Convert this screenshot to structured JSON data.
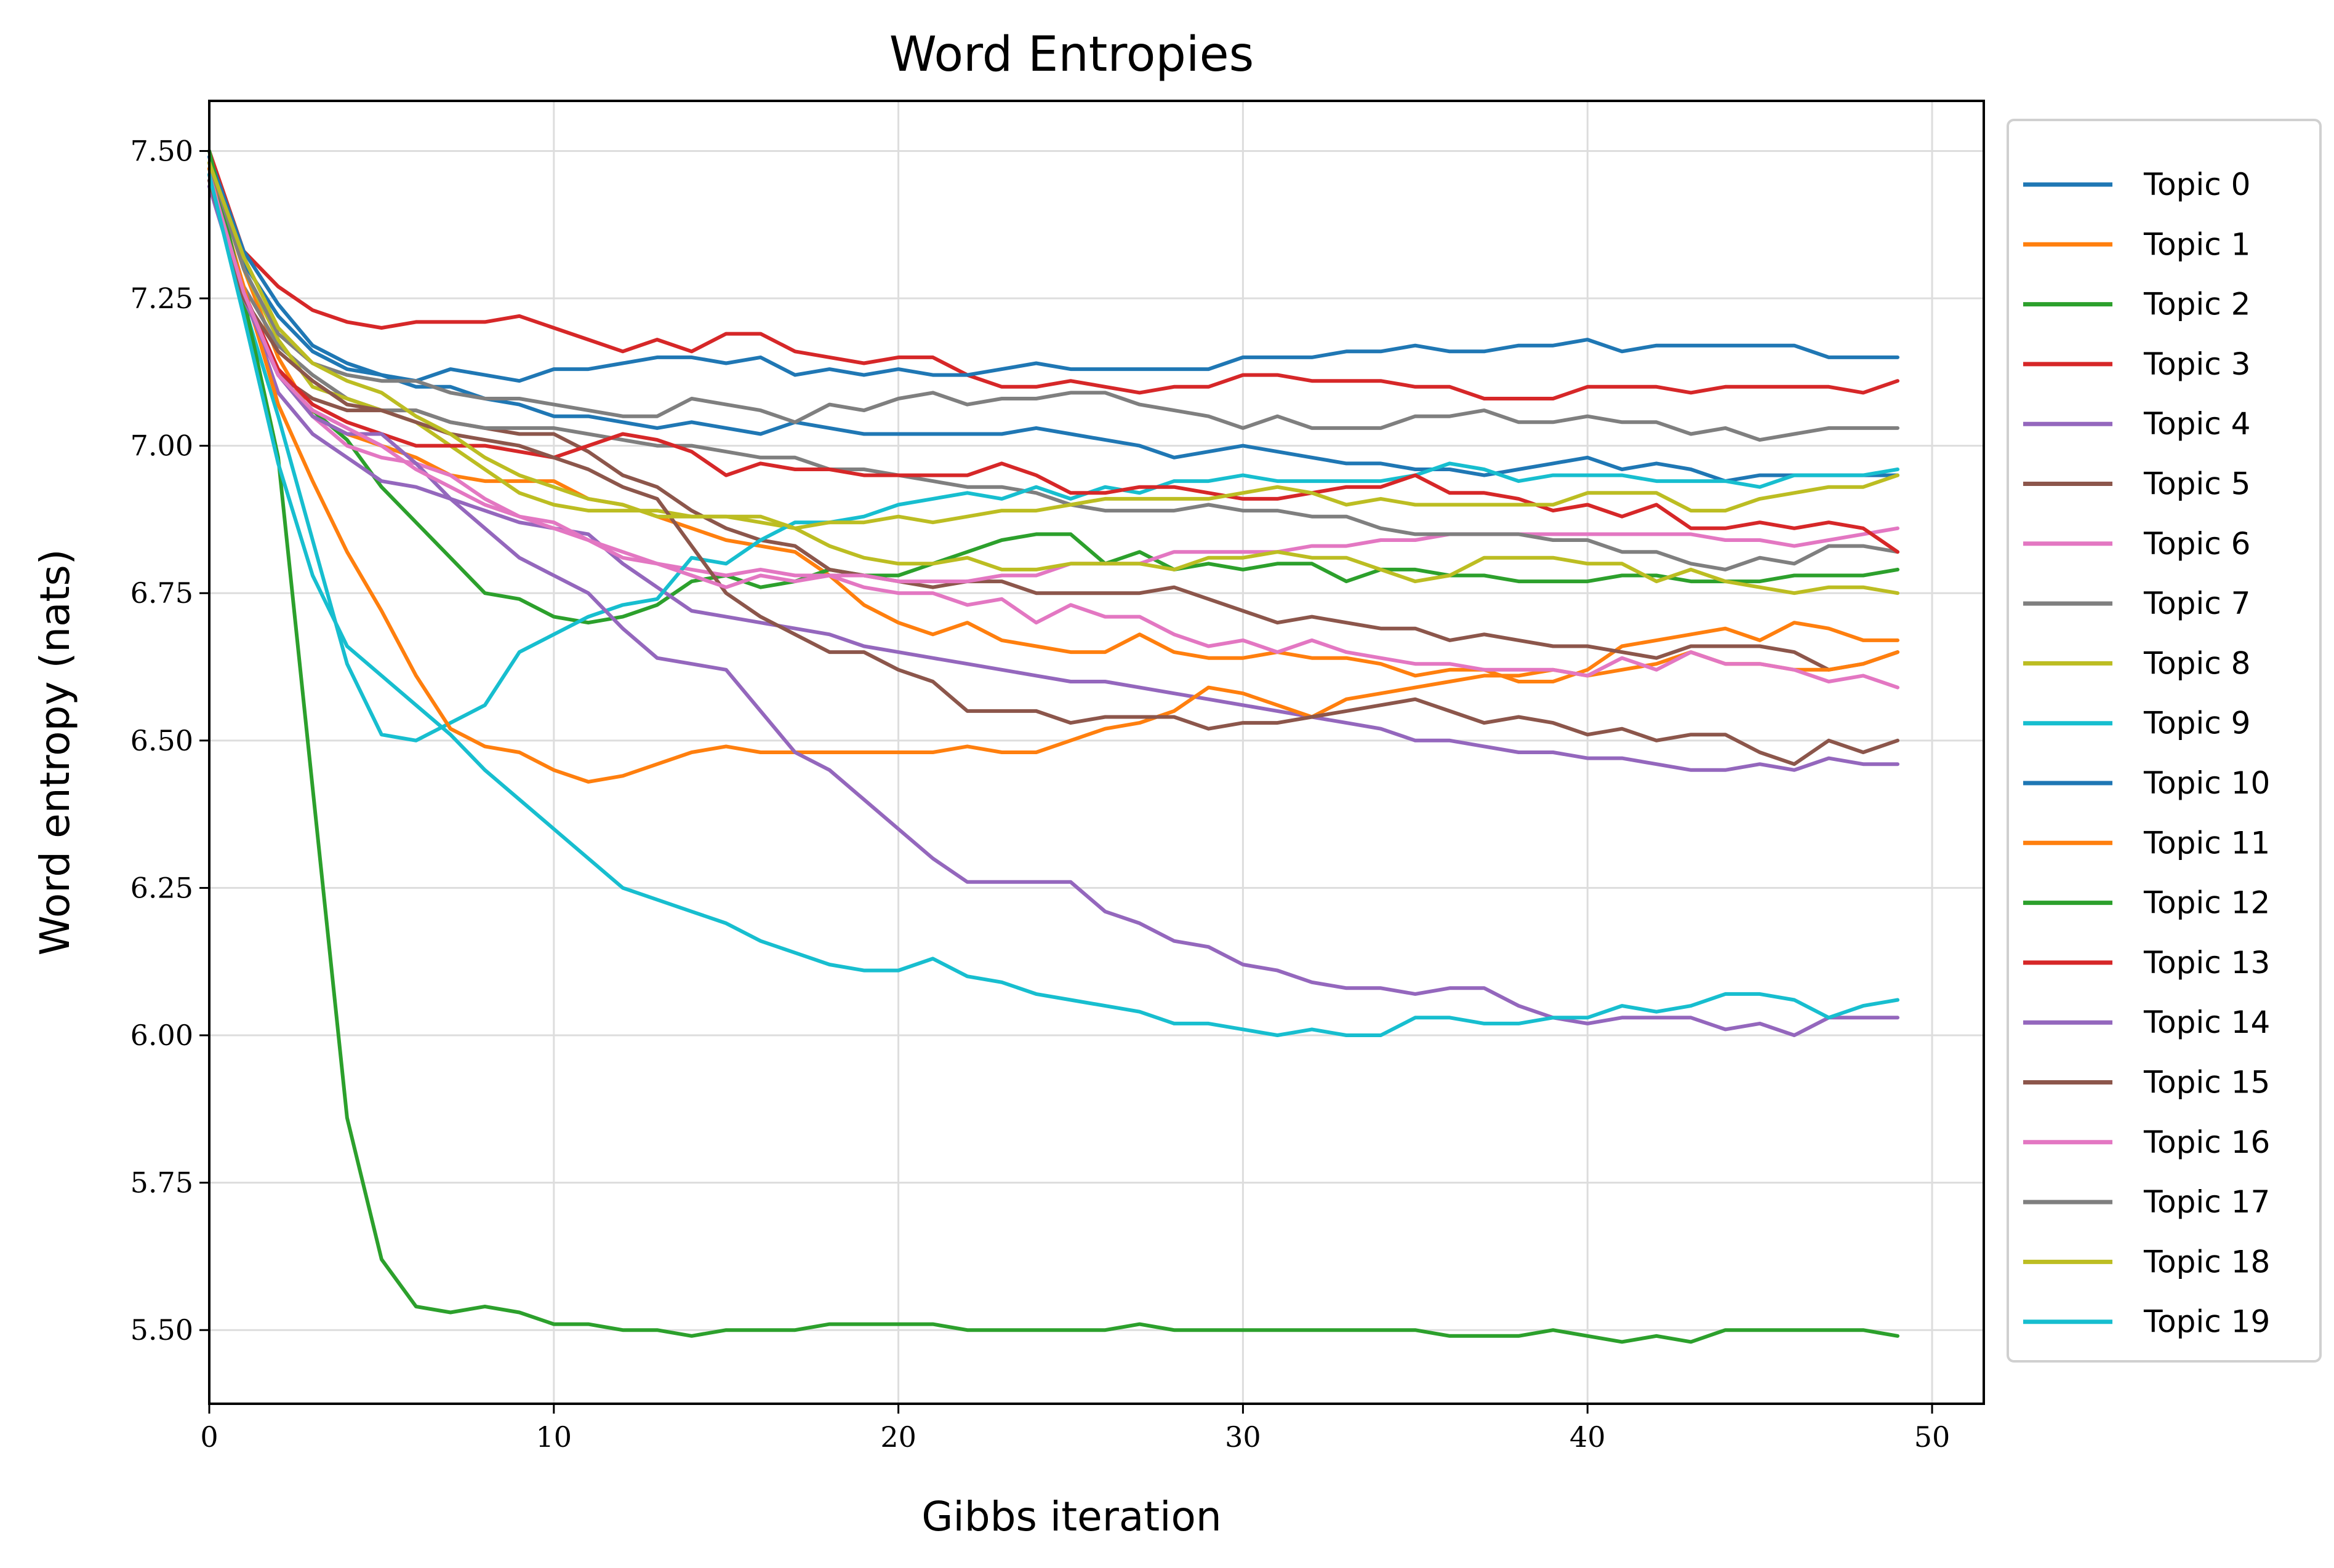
{
  "chart_data": {
    "type": "line",
    "title": "Word Entropies",
    "xlabel": "Gibbs iteration",
    "ylabel": "Word entropy (nats)",
    "xlim": [
      0,
      51.5
    ],
    "ylim": [
      5.375,
      7.585
    ],
    "xticks": [
      0,
      10,
      20,
      30,
      40,
      50
    ],
    "yticks": [
      5.5,
      5.75,
      6.0,
      6.25,
      6.5,
      6.75,
      7.0,
      7.25,
      7.5
    ],
    "xtick_labels": [
      "0",
      "10",
      "20",
      "30",
      "40",
      "50"
    ],
    "ytick_labels": [
      "5.50",
      "5.75",
      "6.00",
      "6.25",
      "6.50",
      "6.75",
      "7.00",
      "7.25",
      "7.50"
    ],
    "grid": true,
    "legend_position": "outside-right",
    "x": [
      0,
      1,
      2,
      3,
      4,
      5,
      6,
      7,
      8,
      9,
      10,
      11,
      12,
      13,
      14,
      15,
      16,
      17,
      18,
      19,
      20,
      21,
      22,
      23,
      24,
      25,
      26,
      27,
      28,
      29,
      30,
      31,
      32,
      33,
      34,
      35,
      36,
      37,
      38,
      39,
      40,
      41,
      42,
      43,
      44,
      45,
      46,
      47,
      48,
      49
    ],
    "series": [
      {
        "name": "Topic 0",
        "color": "#1f77b4",
        "values": [
          7.49,
          7.31,
          7.22,
          7.16,
          7.13,
          7.12,
          7.1,
          7.1,
          7.08,
          7.07,
          7.05,
          7.05,
          7.04,
          7.03,
          7.04,
          7.03,
          7.02,
          7.04,
          7.03,
          7.02,
          7.02,
          7.02,
          7.02,
          7.02,
          7.03,
          7.02,
          7.01,
          7.0,
          6.98,
          6.99,
          7.0,
          6.99,
          6.98,
          6.97,
          6.97,
          6.96,
          6.96,
          6.95,
          6.96,
          6.97,
          6.98,
          6.96,
          6.97,
          6.96,
          6.94,
          6.95,
          6.95,
          6.95,
          6.95,
          6.95
        ]
      },
      {
        "name": "Topic 1",
        "color": "#ff7f0e",
        "values": [
          7.48,
          7.3,
          7.15,
          7.05,
          7.02,
          7.0,
          6.98,
          6.95,
          6.94,
          6.94,
          6.94,
          6.91,
          6.9,
          6.88,
          6.86,
          6.84,
          6.83,
          6.82,
          6.78,
          6.73,
          6.7,
          6.68,
          6.7,
          6.67,
          6.66,
          6.65,
          6.65,
          6.68,
          6.65,
          6.64,
          6.64,
          6.65,
          6.64,
          6.64,
          6.63,
          6.61,
          6.62,
          6.62,
          6.6,
          6.6,
          6.62,
          6.66,
          6.67,
          6.68,
          6.69,
          6.67,
          6.7,
          6.69,
          6.67,
          6.67
        ]
      },
      {
        "name": "Topic 2",
        "color": "#2ca02c",
        "values": [
          7.47,
          7.26,
          7.12,
          7.06,
          7.01,
          6.93,
          6.87,
          6.81,
          6.75,
          6.74,
          6.71,
          6.7,
          6.71,
          6.73,
          6.77,
          6.78,
          6.76,
          6.77,
          6.79,
          6.78,
          6.78,
          6.8,
          6.82,
          6.84,
          6.85,
          6.85,
          6.8,
          6.82,
          6.79,
          6.8,
          6.79,
          6.8,
          6.8,
          6.77,
          6.79,
          6.79,
          6.78,
          6.78,
          6.77,
          6.77,
          6.77,
          6.78,
          6.78,
          6.77,
          6.77,
          6.77,
          6.78,
          6.78,
          6.78,
          6.79
        ]
      },
      {
        "name": "Topic 3",
        "color": "#d62728",
        "values": [
          7.5,
          7.33,
          7.27,
          7.23,
          7.21,
          7.2,
          7.21,
          7.21,
          7.21,
          7.22,
          7.2,
          7.18,
          7.16,
          7.18,
          7.16,
          7.19,
          7.19,
          7.16,
          7.15,
          7.14,
          7.15,
          7.15,
          7.12,
          7.1,
          7.1,
          7.11,
          7.1,
          7.09,
          7.1,
          7.1,
          7.12,
          7.12,
          7.11,
          7.11,
          7.11,
          7.1,
          7.1,
          7.08,
          7.08,
          7.08,
          7.1,
          7.1,
          7.1,
          7.09,
          7.1,
          7.1,
          7.1,
          7.1,
          7.09,
          7.11
        ]
      },
      {
        "name": "Topic 4",
        "color": "#9467bd",
        "values": [
          7.45,
          7.26,
          7.09,
          7.02,
          6.98,
          6.94,
          6.93,
          6.91,
          6.89,
          6.87,
          6.86,
          6.85,
          6.8,
          6.76,
          6.72,
          6.71,
          6.7,
          6.69,
          6.68,
          6.66,
          6.65,
          6.64,
          6.63,
          6.62,
          6.61,
          6.6,
          6.6,
          6.59,
          6.58,
          6.57,
          6.56,
          6.55,
          6.54,
          6.53,
          6.52,
          6.5,
          6.5,
          6.49,
          6.48,
          6.48,
          6.47,
          6.47,
          6.46,
          6.45,
          6.45,
          6.46,
          6.45,
          6.47,
          6.46,
          6.46
        ]
      },
      {
        "name": "Topic 5",
        "color": "#8c564b",
        "values": [
          7.46,
          7.25,
          7.12,
          7.08,
          7.06,
          7.06,
          7.06,
          7.04,
          7.03,
          7.02,
          7.02,
          6.99,
          6.95,
          6.93,
          6.89,
          6.86,
          6.84,
          6.83,
          6.79,
          6.78,
          6.77,
          6.76,
          6.77,
          6.77,
          6.75,
          6.75,
          6.75,
          6.75,
          6.76,
          6.74,
          6.72,
          6.7,
          6.71,
          6.7,
          6.69,
          6.69,
          6.67,
          6.68,
          6.67,
          6.66,
          6.66,
          6.65,
          6.64,
          6.66,
          6.66,
          6.66,
          6.65,
          6.62,
          6.63,
          6.65
        ]
      },
      {
        "name": "Topic 6",
        "color": "#e377c2",
        "values": [
          7.46,
          7.26,
          7.12,
          7.05,
          7.0,
          6.98,
          6.97,
          6.95,
          6.91,
          6.88,
          6.86,
          6.84,
          6.81,
          6.8,
          6.79,
          6.78,
          6.79,
          6.78,
          6.78,
          6.78,
          6.77,
          6.77,
          6.77,
          6.78,
          6.78,
          6.8,
          6.8,
          6.8,
          6.82,
          6.82,
          6.82,
          6.82,
          6.83,
          6.83,
          6.84,
          6.84,
          6.85,
          6.85,
          6.85,
          6.85,
          6.85,
          6.85,
          6.85,
          6.85,
          6.84,
          6.84,
          6.83,
          6.84,
          6.85,
          6.86
        ]
      },
      {
        "name": "Topic 7",
        "color": "#7f7f7f",
        "values": [
          7.47,
          7.27,
          7.17,
          7.12,
          7.08,
          7.06,
          7.06,
          7.04,
          7.03,
          7.03,
          7.03,
          7.02,
          7.01,
          7.0,
          7.0,
          6.99,
          6.98,
          6.98,
          6.96,
          6.96,
          6.95,
          6.94,
          6.93,
          6.93,
          6.92,
          6.9,
          6.89,
          6.89,
          6.89,
          6.9,
          6.89,
          6.89,
          6.88,
          6.88,
          6.86,
          6.85,
          6.85,
          6.85,
          6.85,
          6.84,
          6.84,
          6.82,
          6.82,
          6.8,
          6.79,
          6.81,
          6.8,
          6.83,
          6.83,
          6.82
        ]
      },
      {
        "name": "Topic 8",
        "color": "#bcbd22",
        "values": [
          7.48,
          7.3,
          7.18,
          7.1,
          7.08,
          7.06,
          7.04,
          7.0,
          6.96,
          6.92,
          6.9,
          6.89,
          6.89,
          6.89,
          6.88,
          6.88,
          6.87,
          6.86,
          6.83,
          6.81,
          6.8,
          6.8,
          6.81,
          6.79,
          6.79,
          6.8,
          6.8,
          6.8,
          6.79,
          6.81,
          6.81,
          6.82,
          6.81,
          6.81,
          6.79,
          6.77,
          6.78,
          6.81,
          6.81,
          6.81,
          6.8,
          6.8,
          6.77,
          6.79,
          6.77,
          6.76,
          6.75,
          6.76,
          6.76,
          6.75
        ]
      },
      {
        "name": "Topic 9",
        "color": "#17becf",
        "values": [
          7.46,
          7.24,
          7.05,
          6.84,
          6.63,
          6.51,
          6.5,
          6.53,
          6.56,
          6.65,
          6.68,
          6.71,
          6.73,
          6.74,
          6.81,
          6.8,
          6.84,
          6.87,
          6.87,
          6.88,
          6.9,
          6.91,
          6.92,
          6.91,
          6.93,
          6.91,
          6.93,
          6.92,
          6.94,
          6.94,
          6.95,
          6.94,
          6.94,
          6.94,
          6.94,
          6.95,
          6.97,
          6.96,
          6.94,
          6.95,
          6.95,
          6.95,
          6.94,
          6.94,
          6.94,
          6.93,
          6.95,
          6.95,
          6.95,
          6.96
        ]
      },
      {
        "name": "Topic 10",
        "color": "#1f77b4",
        "values": [
          7.49,
          7.33,
          7.24,
          7.17,
          7.14,
          7.12,
          7.11,
          7.13,
          7.12,
          7.11,
          7.13,
          7.13,
          7.14,
          7.15,
          7.15,
          7.14,
          7.15,
          7.12,
          7.13,
          7.12,
          7.13,
          7.12,
          7.12,
          7.13,
          7.14,
          7.13,
          7.13,
          7.13,
          7.13,
          7.13,
          7.15,
          7.15,
          7.15,
          7.16,
          7.16,
          7.17,
          7.16,
          7.16,
          7.17,
          7.17,
          7.18,
          7.16,
          7.17,
          7.17,
          7.17,
          7.17,
          7.17,
          7.15,
          7.15,
          7.15
        ]
      },
      {
        "name": "Topic 11",
        "color": "#ff7f0e",
        "values": [
          7.47,
          7.27,
          7.07,
          6.94,
          6.82,
          6.72,
          6.61,
          6.52,
          6.49,
          6.48,
          6.45,
          6.43,
          6.44,
          6.46,
          6.48,
          6.49,
          6.48,
          6.48,
          6.48,
          6.48,
          6.48,
          6.48,
          6.49,
          6.48,
          6.48,
          6.5,
          6.52,
          6.53,
          6.55,
          6.59,
          6.58,
          6.56,
          6.54,
          6.57,
          6.58,
          6.59,
          6.6,
          6.61,
          6.61,
          6.62,
          6.61,
          6.62,
          6.63,
          6.65,
          6.63,
          6.63,
          6.62,
          6.62,
          6.63,
          6.65
        ]
      },
      {
        "name": "Topic 12",
        "color": "#2ca02c",
        "values": [
          7.5,
          7.25,
          6.98,
          6.42,
          5.86,
          5.62,
          5.54,
          5.53,
          5.54,
          5.53,
          5.51,
          5.51,
          5.5,
          5.5,
          5.49,
          5.5,
          5.5,
          5.5,
          5.51,
          5.51,
          5.51,
          5.51,
          5.5,
          5.5,
          5.5,
          5.5,
          5.5,
          5.51,
          5.5,
          5.5,
          5.5,
          5.5,
          5.5,
          5.5,
          5.5,
          5.5,
          5.49,
          5.49,
          5.49,
          5.5,
          5.49,
          5.48,
          5.49,
          5.48,
          5.5,
          5.5,
          5.5,
          5.5,
          5.5,
          5.49
        ]
      },
      {
        "name": "Topic 13",
        "color": "#d62728",
        "values": [
          7.46,
          7.26,
          7.13,
          7.07,
          7.04,
          7.02,
          7.0,
          7.0,
          7.0,
          6.99,
          6.98,
          7.0,
          7.02,
          7.01,
          6.99,
          6.95,
          6.97,
          6.96,
          6.96,
          6.95,
          6.95,
          6.95,
          6.95,
          6.97,
          6.95,
          6.92,
          6.92,
          6.93,
          6.93,
          6.92,
          6.91,
          6.91,
          6.92,
          6.93,
          6.93,
          6.95,
          6.92,
          6.92,
          6.91,
          6.89,
          6.9,
          6.88,
          6.9,
          6.86,
          6.86,
          6.87,
          6.86,
          6.87,
          6.86,
          6.82
        ]
      },
      {
        "name": "Topic 14",
        "color": "#9467bd",
        "values": [
          7.44,
          7.25,
          7.12,
          7.05,
          7.02,
          7.02,
          6.97,
          6.91,
          6.86,
          6.81,
          6.78,
          6.75,
          6.69,
          6.64,
          6.63,
          6.62,
          6.55,
          6.48,
          6.45,
          6.4,
          6.35,
          6.3,
          6.26,
          6.26,
          6.26,
          6.26,
          6.21,
          6.19,
          6.16,
          6.15,
          6.12,
          6.11,
          6.09,
          6.08,
          6.08,
          6.07,
          6.08,
          6.08,
          6.05,
          6.03,
          6.02,
          6.03,
          6.03,
          6.03,
          6.01,
          6.02,
          6.0,
          6.03,
          6.03,
          6.03
        ]
      },
      {
        "name": "Topic 15",
        "color": "#8c564b",
        "values": [
          7.45,
          7.25,
          7.16,
          7.11,
          7.07,
          7.06,
          7.04,
          7.02,
          7.01,
          7.0,
          6.98,
          6.96,
          6.93,
          6.91,
          6.83,
          6.75,
          6.71,
          6.68,
          6.65,
          6.65,
          6.62,
          6.6,
          6.55,
          6.55,
          6.55,
          6.53,
          6.54,
          6.54,
          6.54,
          6.52,
          6.53,
          6.53,
          6.54,
          6.55,
          6.56,
          6.57,
          6.55,
          6.53,
          6.54,
          6.53,
          6.51,
          6.52,
          6.5,
          6.51,
          6.51,
          6.48,
          6.46,
          6.5,
          6.48,
          6.5
        ]
      },
      {
        "name": "Topic 16",
        "color": "#e377c2",
        "values": [
          7.46,
          7.26,
          7.12,
          7.06,
          7.03,
          7.0,
          6.96,
          6.93,
          6.9,
          6.88,
          6.87,
          6.84,
          6.82,
          6.8,
          6.78,
          6.76,
          6.78,
          6.77,
          6.78,
          6.76,
          6.75,
          6.75,
          6.73,
          6.74,
          6.7,
          6.73,
          6.71,
          6.71,
          6.68,
          6.66,
          6.67,
          6.65,
          6.67,
          6.65,
          6.64,
          6.63,
          6.63,
          6.62,
          6.62,
          6.62,
          6.61,
          6.64,
          6.62,
          6.65,
          6.63,
          6.63,
          6.62,
          6.6,
          6.61,
          6.59
        ]
      },
      {
        "name": "Topic 17",
        "color": "#7f7f7f",
        "values": [
          7.48,
          7.3,
          7.19,
          7.14,
          7.12,
          7.11,
          7.11,
          7.09,
          7.08,
          7.08,
          7.07,
          7.06,
          7.05,
          7.05,
          7.08,
          7.07,
          7.06,
          7.04,
          7.07,
          7.06,
          7.08,
          7.09,
          7.07,
          7.08,
          7.08,
          7.09,
          7.09,
          7.07,
          7.06,
          7.05,
          7.03,
          7.05,
          7.03,
          7.03,
          7.03,
          7.05,
          7.05,
          7.06,
          7.04,
          7.04,
          7.05,
          7.04,
          7.04,
          7.02,
          7.03,
          7.01,
          7.02,
          7.03,
          7.03,
          7.03
        ]
      },
      {
        "name": "Topic 18",
        "color": "#bcbd22",
        "values": [
          7.48,
          7.32,
          7.2,
          7.14,
          7.11,
          7.09,
          7.05,
          7.02,
          6.98,
          6.95,
          6.93,
          6.91,
          6.9,
          6.88,
          6.88,
          6.88,
          6.88,
          6.86,
          6.87,
          6.87,
          6.88,
          6.87,
          6.88,
          6.89,
          6.89,
          6.9,
          6.91,
          6.91,
          6.91,
          6.91,
          6.92,
          6.93,
          6.92,
          6.9,
          6.91,
          6.9,
          6.9,
          6.9,
          6.9,
          6.9,
          6.92,
          6.92,
          6.92,
          6.89,
          6.89,
          6.91,
          6.92,
          6.93,
          6.93,
          6.95
        ]
      },
      {
        "name": "Topic 19",
        "color": "#17becf",
        "values": [
          7.46,
          7.22,
          6.97,
          6.78,
          6.66,
          6.61,
          6.56,
          6.51,
          6.45,
          6.4,
          6.35,
          6.3,
          6.25,
          6.23,
          6.21,
          6.19,
          6.16,
          6.14,
          6.12,
          6.11,
          6.11,
          6.13,
          6.1,
          6.09,
          6.07,
          6.06,
          6.05,
          6.04,
          6.02,
          6.02,
          6.01,
          6.0,
          6.01,
          6.0,
          6.0,
          6.03,
          6.03,
          6.02,
          6.02,
          6.03,
          6.03,
          6.05,
          6.04,
          6.05,
          6.07,
          6.07,
          6.06,
          6.03,
          6.05,
          6.06
        ]
      }
    ]
  }
}
